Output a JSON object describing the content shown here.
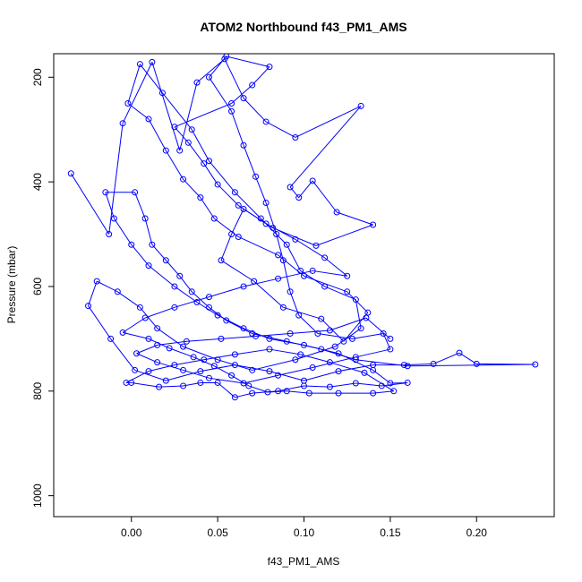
{
  "chart_data": {
    "type": "scatter",
    "title": "ATOM2 Northbound f43_PM1_AMS",
    "xlabel": "f43_PM1_AMS",
    "ylabel": "Pressure (mbar)",
    "xlim": [
      -0.045,
      0.245
    ],
    "ylim": [
      1040,
      155
    ],
    "y_reversed": true,
    "x_ticks": [
      0.0,
      0.05,
      0.1,
      0.15,
      0.2
    ],
    "x_tick_labels": [
      "0.00",
      "0.05",
      "0.10",
      "0.15",
      "0.20"
    ],
    "y_ticks": [
      200,
      400,
      600,
      800,
      1000
    ],
    "y_tick_labels": [
      "200",
      "400",
      "600",
      "800",
      "1000"
    ],
    "color": "#0000ff",
    "grid": false,
    "legend": "none",
    "marker": "open-circle",
    "connect_points": true,
    "points": [
      [
        -0.035,
        384
      ],
      [
        -0.013,
        500
      ],
      [
        -0.005,
        288
      ],
      [
        0.012,
        171
      ],
      [
        0.028,
        340
      ],
      [
        0.038,
        210
      ],
      [
        0.054,
        165
      ],
      [
        0.065,
        240
      ],
      [
        0.078,
        285
      ],
      [
        0.095,
        315
      ],
      [
        0.133,
        255
      ],
      [
        0.092,
        410
      ],
      [
        0.097,
        430
      ],
      [
        0.105,
        398
      ],
      [
        0.119,
        458
      ],
      [
        0.14,
        482
      ],
      [
        0.107,
        522
      ],
      [
        0.082,
        488
      ],
      [
        0.065,
        452
      ],
      [
        0.058,
        500
      ],
      [
        0.052,
        550
      ],
      [
        0.071,
        590
      ],
      [
        0.088,
        640
      ],
      [
        0.11,
        662
      ],
      [
        0.123,
        705
      ],
      [
        0.137,
        650
      ],
      [
        0.125,
        610
      ],
      [
        0.1,
        580
      ],
      [
        0.085,
        540
      ],
      [
        0.062,
        505
      ],
      [
        0.048,
        470
      ],
      [
        0.04,
        430
      ],
      [
        0.03,
        395
      ],
      [
        0.02,
        340
      ],
      [
        0.01,
        280
      ],
      [
        -0.002,
        250
      ],
      [
        0.005,
        175
      ],
      [
        0.018,
        230
      ],
      [
        0.035,
        300
      ],
      [
        0.045,
        360
      ],
      [
        0.06,
        420
      ],
      [
        0.075,
        470
      ],
      [
        0.09,
        520
      ],
      [
        0.098,
        570
      ],
      [
        0.112,
        600
      ],
      [
        0.13,
        625
      ],
      [
        0.133,
        680
      ],
      [
        0.118,
        715
      ],
      [
        0.095,
        740
      ],
      [
        0.07,
        760
      ],
      [
        0.05,
        740
      ],
      [
        0.03,
        715
      ],
      [
        0.015,
        680
      ],
      [
        0.005,
        640
      ],
      [
        -0.008,
        610
      ],
      [
        -0.02,
        590
      ],
      [
        -0.025,
        637
      ],
      [
        -0.012,
        700
      ],
      [
        0.002,
        760
      ],
      [
        0.02,
        780
      ],
      [
        0.04,
        762
      ],
      [
        0.06,
        750
      ],
      [
        0.08,
        762
      ],
      [
        0.1,
        780
      ],
      [
        0.12,
        762
      ],
      [
        0.14,
        750
      ],
      [
        0.158,
        750
      ],
      [
        0.175,
        748
      ],
      [
        0.19,
        727
      ],
      [
        0.2,
        748
      ],
      [
        0.234,
        749
      ],
      [
        0.16,
        752
      ],
      [
        0.13,
        740
      ],
      [
        0.11,
        720
      ],
      [
        0.09,
        705
      ],
      [
        0.07,
        690
      ],
      [
        0.055,
        665
      ],
      [
        0.045,
        640
      ],
      [
        0.035,
        610
      ],
      [
        0.028,
        580
      ],
      [
        0.02,
        550
      ],
      [
        0.012,
        520
      ],
      [
        0.008,
        470
      ],
      [
        0.002,
        420
      ],
      [
        -0.015,
        420
      ],
      [
        -0.01,
        470
      ],
      [
        0.0,
        520
      ],
      [
        0.01,
        560
      ],
      [
        0.025,
        600
      ],
      [
        0.038,
        630
      ],
      [
        0.05,
        655
      ],
      [
        0.065,
        680
      ],
      [
        0.08,
        700
      ],
      [
        0.1,
        712
      ],
      [
        0.12,
        728
      ],
      [
        0.14,
        760
      ],
      [
        0.15,
        785
      ],
      [
        0.16,
        784
      ],
      [
        0.145,
        790
      ],
      [
        0.13,
        785
      ],
      [
        0.115,
        792
      ],
      [
        0.1,
        790
      ],
      [
        0.085,
        800
      ],
      [
        0.07,
        804
      ],
      [
        0.06,
        812
      ],
      [
        0.05,
        784
      ],
      [
        0.04,
        784
      ],
      [
        0.03,
        790
      ],
      [
        0.016,
        792
      ],
      [
        0.0,
        784
      ],
      [
        -0.003,
        784
      ],
      [
        0.01,
        762
      ],
      [
        0.025,
        750
      ],
      [
        0.042,
        740
      ],
      [
        0.06,
        730
      ],
      [
        0.08,
        720
      ],
      [
        0.098,
        730
      ],
      [
        0.115,
        745
      ],
      [
        0.135,
        765
      ],
      [
        0.152,
        800
      ],
      [
        0.14,
        804
      ],
      [
        0.12,
        804
      ],
      [
        0.103,
        804
      ],
      [
        0.09,
        800
      ],
      [
        0.079,
        802
      ],
      [
        0.068,
        790
      ],
      [
        0.058,
        770
      ],
      [
        0.048,
        752
      ],
      [
        0.036,
        735
      ],
      [
        0.022,
        718
      ],
      [
        0.01,
        700
      ],
      [
        -0.005,
        688
      ],
      [
        0.008,
        660
      ],
      [
        0.025,
        640
      ],
      [
        0.045,
        620
      ],
      [
        0.065,
        600
      ],
      [
        0.085,
        585
      ],
      [
        0.105,
        570
      ],
      [
        0.125,
        580
      ],
      [
        0.112,
        545
      ],
      [
        0.095,
        510
      ],
      [
        0.078,
        480
      ],
      [
        0.062,
        445
      ],
      [
        0.05,
        405
      ],
      [
        0.042,
        365
      ],
      [
        0.033,
        325
      ],
      [
        0.025,
        295
      ],
      [
        0.058,
        250
      ],
      [
        0.07,
        215
      ],
      [
        0.08,
        180
      ],
      [
        0.055,
        160
      ],
      [
        0.045,
        200
      ],
      [
        0.058,
        265
      ],
      [
        0.065,
        330
      ],
      [
        0.072,
        390
      ],
      [
        0.078,
        440
      ],
      [
        0.084,
        500
      ],
      [
        0.088,
        550
      ],
      [
        0.092,
        610
      ],
      [
        0.097,
        655
      ],
      [
        0.108,
        690
      ],
      [
        0.128,
        700
      ],
      [
        0.146,
        690
      ],
      [
        0.15,
        720
      ],
      [
        0.13,
        735
      ],
      [
        0.105,
        755
      ],
      [
        0.085,
        770
      ],
      [
        0.065,
        785
      ],
      [
        0.045,
        775
      ],
      [
        0.03,
        760
      ],
      [
        0.015,
        745
      ],
      [
        0.003,
        728
      ],
      [
        0.015,
        712
      ],
      [
        0.032,
        705
      ],
      [
        0.052,
        700
      ],
      [
        0.072,
        695
      ],
      [
        0.092,
        690
      ],
      [
        0.115,
        684
      ],
      [
        0.136,
        660
      ],
      [
        0.15,
        700
      ]
    ]
  }
}
